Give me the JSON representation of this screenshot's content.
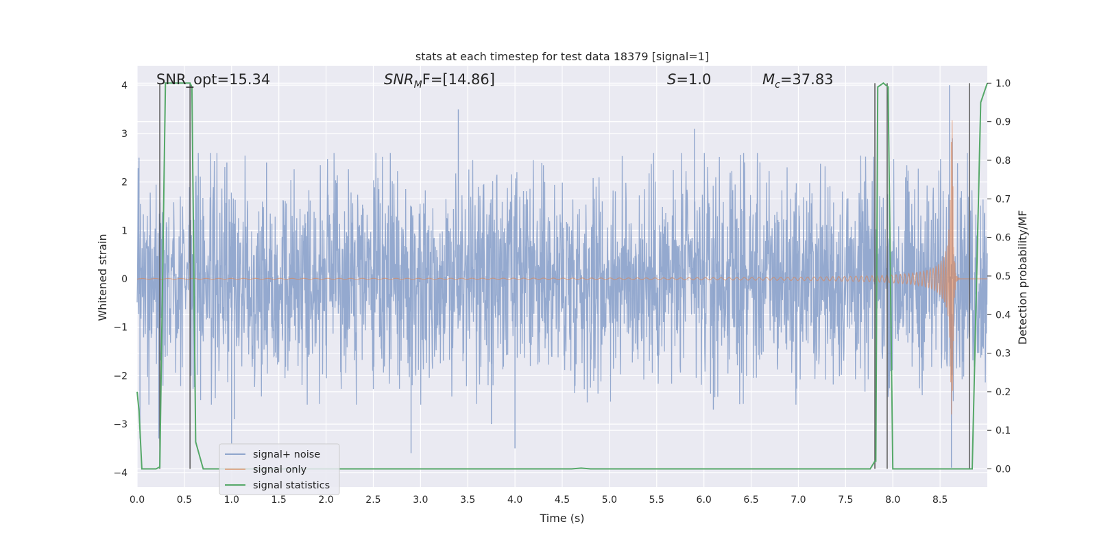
{
  "chart_data": {
    "type": "line",
    "title": "stats at each timestep for test data 18379 [signal=1]",
    "xlabel": "Time (s)",
    "ylabel_left": "Whitened strain",
    "ylabel_right": "Detection probability/MF",
    "xlim": [
      0.0,
      9.0
    ],
    "ylim_left": [
      -4.3,
      4.4
    ],
    "ylim_right": [
      -0.047,
      1.045
    ],
    "x_ticks": [
      0.0,
      0.5,
      1.0,
      1.5,
      2.0,
      2.5,
      3.0,
      3.5,
      4.0,
      4.5,
      5.0,
      5.5,
      6.0,
      6.5,
      7.0,
      7.5,
      8.0,
      8.5
    ],
    "x_tick_labels": [
      "0.0",
      "0.5",
      "1.0",
      "1.5",
      "2.0",
      "2.5",
      "3.0",
      "3.5",
      "4.0",
      "4.5",
      "5.0",
      "5.5",
      "6.0",
      "6.5",
      "7.0",
      "7.5",
      "8.0",
      "8.5"
    ],
    "y_left_ticks": [
      -4,
      -3,
      -2,
      -1,
      0,
      1,
      2,
      3,
      4
    ],
    "y_left_tick_labels": [
      "−4",
      "−3",
      "−2",
      "−1",
      "0",
      "1",
      "2",
      "3",
      "4"
    ],
    "y_right_ticks": [
      0.0,
      0.1,
      0.2,
      0.3,
      0.4,
      0.5,
      0.6,
      0.7,
      0.8,
      0.9,
      1.0
    ],
    "y_right_tick_labels": [
      "0.0",
      "0.1",
      "0.2",
      "0.3",
      "0.4",
      "0.5",
      "0.6",
      "0.7",
      "0.8",
      "0.9",
      "1.0"
    ],
    "annotations": {
      "snr_opt": "SNR_opt=15.34",
      "snr_mf_symbol": "SNR",
      "snr_mf_sub": "M",
      "snr_mf_rest": "F=[14.86]",
      "s_symbol": "S",
      "s_rest": "=1.0",
      "mc_symbol": "M",
      "mc_sub": "c",
      "mc_rest": "=37.83"
    },
    "series": [
      {
        "name": "signal+ noise",
        "axis": "left",
        "color": "#8fa5cc",
        "kind": "noise",
        "typical_abs": 1.6,
        "spikes": [
          {
            "t": 0.02,
            "v": 2.5
          },
          {
            "t": 0.03,
            "v": -3.3
          },
          {
            "t": 0.23,
            "v": -3.3
          },
          {
            "t": 0.62,
            "v": 2.0
          },
          {
            "t": 0.95,
            "v": 2.4
          },
          {
            "t": 1.0,
            "v": -3.4
          },
          {
            "t": 1.03,
            "v": -2.9
          },
          {
            "t": 1.37,
            "v": 2.4
          },
          {
            "t": 2.9,
            "v": -3.6
          },
          {
            "t": 3.4,
            "v": 3.5
          },
          {
            "t": 3.75,
            "v": -3.0
          },
          {
            "t": 4.0,
            "v": -3.5
          },
          {
            "t": 5.9,
            "v": 3.1
          },
          {
            "t": 6.1,
            "v": -2.7
          },
          {
            "t": 7.82,
            "v": -3.0
          },
          {
            "t": 8.6,
            "v": 4.0
          },
          {
            "t": 8.62,
            "v": -3.9
          },
          {
            "t": 8.63,
            "v": 2.9
          }
        ]
      },
      {
        "name": "signal only",
        "axis": "left",
        "color": "#dd8452",
        "kind": "chirp",
        "t_merger": 8.63,
        "peak_amplitude": 3.4
      },
      {
        "name": "signal statistics",
        "axis": "right",
        "color": "#55a868",
        "kind": "line",
        "x": [
          0.0,
          0.02,
          0.05,
          0.2,
          0.24,
          0.3,
          0.56,
          0.58,
          0.62,
          0.7,
          2.5,
          4.6,
          4.7,
          4.8,
          7.76,
          7.81,
          7.82,
          7.84,
          7.9,
          7.95,
          8.0,
          8.82,
          8.84,
          8.93,
          9.0
        ],
        "y": [
          0.2,
          0.15,
          0.0,
          0.0,
          0.005,
          1.0,
          1.0,
          0.99,
          0.07,
          0.0,
          0.0,
          0.0,
          0.002,
          0.0,
          0.0,
          0.02,
          0.02,
          0.99,
          1.0,
          0.99,
          0.0,
          0.0,
          0.0,
          0.95,
          1.0
        ]
      }
    ],
    "vertical_markers_s": [
      0.24,
      0.56,
      7.81,
      7.94,
      8.81
    ],
    "marker_color": "#555555",
    "legend": {
      "position": "lower-left",
      "entries": [
        "signal+ noise",
        "signal only",
        "signal statistics"
      ]
    },
    "plot_background": "#eaeaf2",
    "grid": true
  }
}
